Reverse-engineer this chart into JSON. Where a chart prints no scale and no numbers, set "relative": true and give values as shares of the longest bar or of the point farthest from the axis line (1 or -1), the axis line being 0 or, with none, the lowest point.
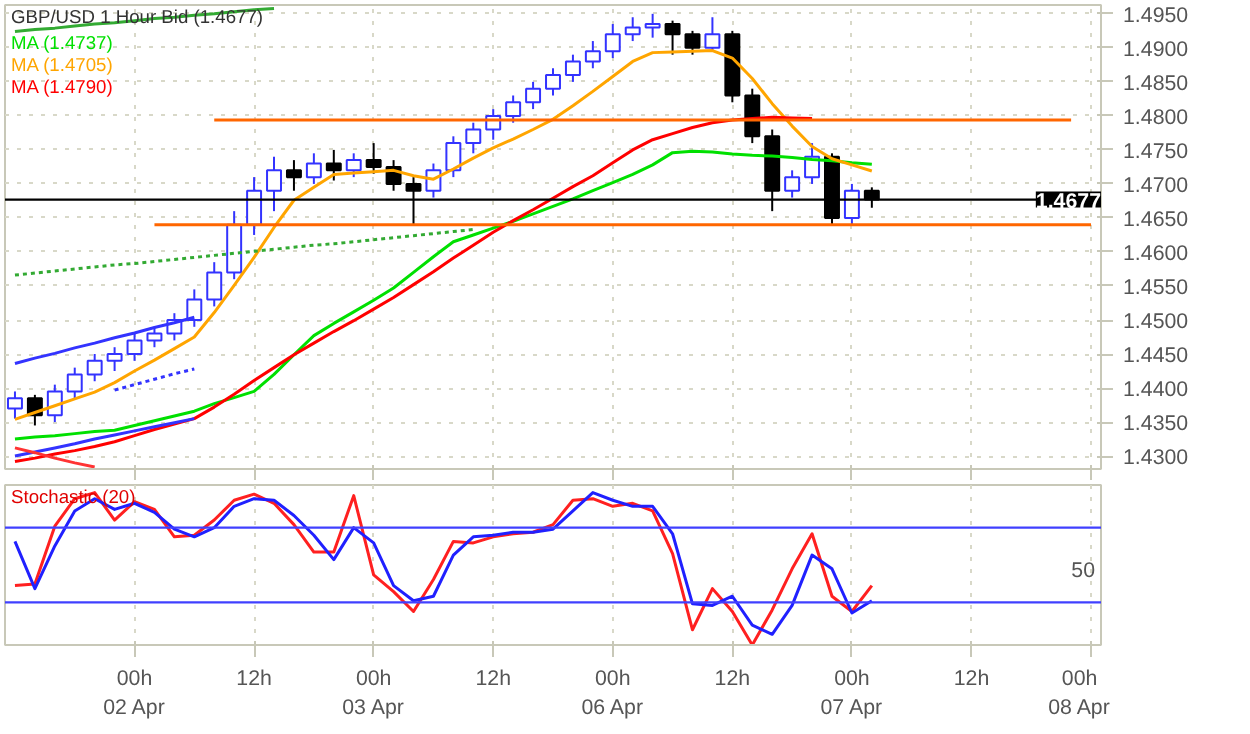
{
  "chart_data": [
    {
      "type": "candlestick",
      "title": "GBP/USD 1 Hour Bid (1.4677)",
      "legend": "top left",
      "grid": true,
      "categories": [
        null,
        null,
        null,
        null,
        null,
        null,
        null,
        null,
        null,
        null,
        null,
        null,
        null,
        null,
        null,
        null,
        null,
        null,
        null,
        null,
        null,
        null,
        null,
        null,
        null,
        null,
        null,
        null,
        null,
        null,
        null,
        null,
        null,
        null,
        null,
        null,
        null,
        null,
        null,
        null,
        null,
        null,
        null,
        null,
        null,
        null,
        null,
        null,
        null,
        null,
        null,
        null,
        null,
        null,
        null
      ],
      "ohlc": [
        [
          1.437,
          1.4395,
          1.4355,
          1.4385
        ],
        [
          1.4385,
          1.439,
          1.4345,
          1.436
        ],
        [
          1.436,
          1.4405,
          1.435,
          1.4395
        ],
        [
          1.4395,
          1.443,
          1.4385,
          1.442
        ],
        [
          1.442,
          1.445,
          1.441,
          1.444
        ],
        [
          1.444,
          1.446,
          1.4425,
          1.445
        ],
        [
          1.445,
          1.448,
          1.444,
          1.447
        ],
        [
          1.447,
          1.449,
          1.446,
          1.448
        ],
        [
          1.448,
          1.451,
          1.447,
          1.45
        ],
        [
          1.45,
          1.4545,
          1.449,
          1.453
        ],
        [
          1.453,
          1.4585,
          1.452,
          1.457
        ],
        [
          1.457,
          1.466,
          1.456,
          1.464
        ],
        [
          1.464,
          1.471,
          1.4625,
          1.469
        ],
        [
          1.469,
          1.474,
          1.466,
          1.472
        ],
        [
          1.472,
          1.4735,
          1.469,
          1.471
        ],
        [
          1.471,
          1.4745,
          1.47,
          1.473
        ],
        [
          1.473,
          1.475,
          1.4705,
          1.472
        ],
        [
          1.472,
          1.4745,
          1.471,
          1.4735
        ],
        [
          1.4735,
          1.476,
          1.4715,
          1.4725
        ],
        [
          1.4725,
          1.4735,
          1.469,
          1.47
        ],
        [
          1.47,
          1.471,
          1.464,
          1.469
        ],
        [
          1.469,
          1.473,
          1.468,
          1.472
        ],
        [
          1.472,
          1.477,
          1.471,
          1.476
        ],
        [
          1.476,
          1.479,
          1.4745,
          1.478
        ],
        [
          1.478,
          1.481,
          1.4765,
          1.48
        ],
        [
          1.48,
          1.483,
          1.479,
          1.482
        ],
        [
          1.482,
          1.485,
          1.481,
          1.484
        ],
        [
          1.484,
          1.487,
          1.483,
          1.486
        ],
        [
          1.486,
          1.489,
          1.485,
          1.488
        ],
        [
          1.488,
          1.491,
          1.487,
          1.4895
        ],
        [
          1.4895,
          1.4935,
          1.4885,
          1.492
        ],
        [
          1.492,
          1.4945,
          1.491,
          1.493
        ],
        [
          1.493,
          1.495,
          1.4915,
          1.4935
        ],
        [
          1.4935,
          1.494,
          1.489,
          1.492
        ],
        [
          1.492,
          1.4925,
          1.489,
          1.49
        ],
        [
          1.49,
          1.4945,
          1.4895,
          1.492
        ],
        [
          1.492,
          1.4925,
          1.482,
          1.483
        ],
        [
          1.483,
          1.484,
          1.476,
          1.477
        ],
        [
          1.477,
          1.478,
          1.466,
          1.469
        ],
        [
          1.469,
          1.472,
          1.468,
          1.471
        ],
        [
          1.471,
          1.476,
          1.47,
          1.474
        ],
        [
          1.474,
          1.4745,
          1.464,
          1.465
        ],
        [
          1.465,
          1.47,
          1.464,
          1.469
        ],
        [
          1.469,
          1.4695,
          1.4665,
          1.4677
        ],
        null,
        null,
        null,
        null,
        null,
        null,
        null,
        null,
        null,
        null,
        null
      ],
      "series": [
        {
          "type": "line",
          "name": "MA (1.4737)",
          "color": "#00e000",
          "values": [
            1.4325,
            1.4328,
            1.433,
            1.4333,
            1.4336,
            1.4338,
            1.4345,
            1.4352,
            1.4359,
            1.4366,
            1.4377,
            1.4386,
            1.4395,
            1.442,
            1.4449,
            1.4477,
            1.4495,
            1.4512,
            1.4529,
            1.4547,
            1.457,
            1.4593,
            1.4615,
            1.4625,
            1.4635,
            1.4645,
            1.4656,
            1.4667,
            1.4678,
            1.469,
            1.4702,
            1.4714,
            1.4728,
            1.4746,
            1.4748,
            1.4747,
            1.4744,
            1.4742,
            1.4741,
            1.4739,
            1.4736,
            1.4734,
            1.4731,
            1.4729,
            null,
            null,
            null,
            null,
            null,
            null,
            null,
            null,
            null,
            null,
            null
          ]
        },
        {
          "type": "line",
          "name": "MA (1.4705)",
          "color": "#ffa500",
          "values": [
            1.4354,
            1.4364,
            1.4374,
            1.4384,
            1.4394,
            1.4408,
            1.4425,
            1.4441,
            1.4458,
            1.4475,
            1.4511,
            1.4551,
            1.4592,
            1.4636,
            1.4676,
            1.4695,
            1.4714,
            1.4716,
            1.4718,
            1.472,
            1.4712,
            1.4707,
            1.4722,
            1.4738,
            1.4753,
            1.4766,
            1.478,
            1.4795,
            1.4815,
            1.4836,
            1.4858,
            1.488,
            1.4893,
            1.4894,
            1.4895,
            1.4896,
            1.4885,
            1.4855,
            1.4818,
            1.4785,
            1.4755,
            1.4737,
            1.4728,
            1.4719,
            null,
            null,
            null,
            null,
            null,
            null,
            null,
            null,
            null,
            null,
            null
          ]
        },
        {
          "type": "line",
          "name": "MA (1.4790)",
          "color": "#ff0000",
          "values": [
            1.4292,
            1.4297,
            1.4303,
            1.4308,
            1.4314,
            1.4321,
            1.433,
            1.4339,
            1.4347,
            1.4355,
            1.4372,
            1.4391,
            1.4411,
            1.443,
            1.4449,
            1.4466,
            1.4483,
            1.4499,
            1.4516,
            1.4533,
            1.4552,
            1.4571,
            1.4591,
            1.461,
            1.4629,
            1.4646,
            1.4662,
            1.4679,
            1.4696,
            1.4712,
            1.4731,
            1.475,
            1.4765,
            1.4774,
            1.4783,
            1.479,
            1.4794,
            1.4796,
            1.4798,
            1.4797,
            1.4796,
            null,
            null,
            null,
            null,
            null,
            null,
            null,
            null,
            null,
            null,
            null,
            null,
            null,
            null
          ]
        },
        {
          "type": "line",
          "color": "#ff6600",
          "values": [
            null,
            null,
            null,
            null,
            null,
            null,
            null,
            null,
            null,
            null,
            1.4794,
            1.4794,
            1.4794,
            1.4794,
            1.4794,
            1.4794,
            1.4794,
            1.4794,
            1.4794,
            1.4794,
            1.4794,
            1.4794,
            1.4794,
            1.4794,
            1.4794,
            1.4794,
            1.4794,
            1.4794,
            1.4794,
            1.4794,
            1.4794,
            1.4794,
            1.4794,
            1.4794,
            1.4794,
            1.4794,
            1.4794,
            1.4794,
            1.4794,
            1.4794,
            1.4794,
            1.4794,
            1.4794,
            1.4794,
            1.4794,
            1.4794,
            1.4794,
            1.4794,
            1.4794,
            1.4794,
            1.4794,
            1.4794,
            1.4794,
            1.4794,
            null
          ]
        },
        {
          "type": "line",
          "color": "#ff6600",
          "values": [
            null,
            null,
            null,
            null,
            null,
            null,
            null,
            1.464,
            1.464,
            1.464,
            1.464,
            1.464,
            1.464,
            1.464,
            1.464,
            1.464,
            1.464,
            1.464,
            1.464,
            1.464,
            1.464,
            1.464,
            1.464,
            1.464,
            1.464,
            1.464,
            1.464,
            1.464,
            1.464,
            1.464,
            1.464,
            1.464,
            1.464,
            1.464,
            1.464,
            1.464,
            1.464,
            1.464,
            1.464,
            1.464,
            1.464,
            1.464,
            1.464,
            1.464,
            1.464,
            1.464,
            1.464,
            1.464,
            1.464,
            1.464,
            1.464,
            1.464,
            1.464,
            1.464,
            1.464
          ]
        },
        {
          "type": "line",
          "color": "#3333ff",
          "values": [
            1.4436,
            1.4444,
            1.4451,
            1.4459,
            1.4466,
            1.4474,
            1.4481,
            1.4489,
            1.4496,
            1.4504,
            null,
            null,
            null,
            null,
            null,
            null,
            null,
            null,
            null,
            null,
            null,
            null,
            null,
            null,
            null,
            null,
            null,
            null,
            null,
            null,
            null,
            null,
            null,
            null,
            null,
            null,
            null,
            null,
            null,
            null,
            null,
            null,
            null,
            null,
            null,
            null,
            null,
            null,
            null,
            null,
            null,
            null,
            null,
            null,
            null
          ]
        },
        {
          "type": "line",
          "color": "#3333ff",
          "values": [
            1.43,
            1.4306,
            1.4312,
            1.4318,
            1.4325,
            1.4331,
            1.4337,
            1.4343,
            1.4349,
            1.4355,
            null,
            null,
            null,
            null,
            null,
            null,
            null,
            null,
            null,
            null,
            null,
            null,
            null,
            null,
            null,
            null,
            null,
            null,
            null,
            null,
            null,
            null,
            null,
            null,
            null,
            null,
            null,
            null,
            null,
            null,
            null,
            null,
            null,
            null,
            null,
            null,
            null,
            null,
            null,
            null,
            null,
            null,
            null,
            null,
            null
          ]
        },
        {
          "type": "line",
          "color": "#3333ff",
          "line_style": "dotted",
          "values": [
            null,
            null,
            null,
            null,
            null,
            1.4397,
            1.4405,
            1.4413,
            1.4421,
            1.4428,
            null,
            null,
            null,
            null,
            null,
            null,
            null,
            null,
            null,
            null,
            null,
            null,
            null,
            null,
            null,
            null,
            null,
            null,
            null,
            null,
            null,
            null,
            null,
            null,
            null,
            null,
            null,
            null,
            null,
            null,
            null,
            null,
            null,
            null,
            null,
            null,
            null,
            null,
            null,
            null,
            null,
            null,
            null,
            null,
            null
          ]
        },
        {
          "type": "line",
          "color": "#33aa33",
          "line_style": "dotted",
          "values": [
            1.4566,
            1.4569,
            1.4572,
            1.4575,
            1.4578,
            1.4581,
            1.4583,
            1.4586,
            1.4589,
            1.4592,
            1.4595,
            1.4598,
            1.4601,
            1.4604,
            1.4607,
            1.461,
            1.4612,
            1.4615,
            1.4618,
            1.4621,
            1.4624,
            1.4627,
            1.463,
            1.4633,
            null,
            null,
            null,
            null,
            null,
            null,
            null,
            null,
            null,
            null,
            null,
            null,
            null,
            null,
            null,
            null,
            null,
            null,
            null,
            null,
            null,
            null,
            null,
            null,
            null,
            null,
            null,
            null,
            null,
            null,
            null
          ]
        },
        {
          "type": "line",
          "color": "#ff3333",
          "values": [
            1.4312,
            1.4305,
            1.4297,
            1.429,
            1.4284,
            null,
            null,
            null,
            null,
            null,
            null,
            null,
            null,
            null,
            null,
            null,
            null,
            null,
            null,
            null,
            null,
            null,
            null,
            null,
            null,
            null,
            null,
            null,
            null,
            null,
            null,
            null,
            null,
            null,
            null,
            null,
            null,
            null,
            null,
            null,
            null,
            null,
            null,
            null,
            null,
            null,
            null,
            null,
            null,
            null,
            null,
            null,
            null,
            null,
            null
          ]
        },
        {
          "type": "line",
          "color": "#33aa33",
          "values": [
            1.4924,
            1.4927,
            1.4929,
            1.4932,
            1.4935,
            1.4937,
            1.494,
            1.4943,
            1.4945,
            1.4948,
            1.495,
            1.4953,
            1.4956,
            1.4958,
            null,
            null,
            null,
            null,
            null,
            null,
            null,
            null,
            null,
            null,
            null,
            null,
            null,
            null,
            null,
            null,
            null,
            null,
            null,
            null,
            null,
            null,
            null,
            null,
            null,
            null,
            null,
            null,
            null,
            null,
            null,
            null,
            null,
            null,
            null,
            null,
            null,
            null,
            null,
            null,
            null
          ]
        }
      ],
      "ref_lines": [
        {
          "axis": "y",
          "value": 1.4677,
          "label": "1.4677",
          "color": "#000000"
        }
      ],
      "ylim": [
        1.4281,
        1.4963
      ],
      "yticks": [
        {
          "value": 1.43,
          "label": "1.4300"
        },
        {
          "value": 1.435,
          "label": "1.4350"
        },
        {
          "value": 1.44,
          "label": "1.4400"
        },
        {
          "value": 1.445,
          "label": "1.4450"
        },
        {
          "value": 1.45,
          "label": "1.4500"
        },
        {
          "value": 1.455,
          "label": "1.4550"
        },
        {
          "value": 1.46,
          "label": "1.4600"
        },
        {
          "value": 1.465,
          "label": "1.4650"
        },
        {
          "value": 1.47,
          "label": "1.4700"
        },
        {
          "value": 1.475,
          "label": "1.4750"
        },
        {
          "value": 1.48,
          "label": "1.4800"
        },
        {
          "value": 1.485,
          "label": "1.4850"
        },
        {
          "value": 1.49,
          "label": "1.4900"
        },
        {
          "value": 1.495,
          "label": "1.4950"
        }
      ]
    },
    {
      "type": "line",
      "title": "Stochastic (20)",
      "grid": true,
      "relative": true,
      "categories": [
        null,
        null,
        null,
        null,
        null,
        null,
        "00h\n02 Apr",
        null,
        null,
        null,
        null,
        null,
        "12h",
        null,
        null,
        null,
        null,
        null,
        "00h\n03 Apr",
        null,
        null,
        null,
        null,
        null,
        "12h",
        null,
        null,
        null,
        null,
        null,
        "00h\n06 Apr",
        null,
        null,
        null,
        null,
        null,
        "12h",
        null,
        null,
        null,
        null,
        null,
        "00h\n07 Apr",
        null,
        null,
        null,
        null,
        null,
        "12h",
        null,
        null,
        null,
        null,
        null,
        "00h\n08 Apr"
      ],
      "series": [
        {
          "color": "#ff2020",
          "values": [
            0.39,
            0.4,
            0.78,
            0.96,
            1.0,
            0.82,
            0.94,
            0.89,
            0.71,
            0.72,
            0.82,
            0.95,
            0.99,
            0.93,
            0.79,
            0.61,
            0.61,
            0.98,
            0.46,
            0.35,
            0.22,
            0.43,
            0.68,
            0.67,
            0.71,
            0.73,
            0.74,
            0.79,
            0.95,
            0.96,
            0.91,
            0.93,
            0.88,
            0.6,
            0.1,
            0.37,
            0.22,
            0.0,
            0.23,
            0.5,
            0.73,
            0.32,
            0.22,
            0.39,
            null,
            null,
            null,
            null,
            null,
            null,
            null,
            null,
            null,
            null,
            null
          ]
        },
        {
          "color": "#2020ff",
          "values": [
            0.68,
            0.37,
            0.65,
            0.88,
            0.96,
            0.89,
            0.93,
            0.87,
            0.76,
            0.71,
            0.77,
            0.91,
            0.96,
            0.95,
            0.85,
            0.72,
            0.56,
            0.77,
            0.67,
            0.39,
            0.29,
            0.32,
            0.59,
            0.71,
            0.72,
            0.74,
            0.74,
            0.76,
            0.88,
            1.0,
            0.95,
            0.91,
            0.91,
            0.73,
            0.27,
            0.26,
            0.32,
            0.13,
            0.07,
            0.26,
            0.59,
            0.5,
            0.21,
            0.29,
            null,
            null,
            null,
            null,
            null,
            null,
            null,
            null,
            null,
            null,
            null
          ]
        }
      ],
      "ref_lines": [
        {
          "axis": "y",
          "value": 0.77,
          "color": "#4040ff"
        },
        {
          "axis": "y",
          "value": 0.28,
          "color": "#4040ff"
        }
      ],
      "annotations": [
        "50"
      ]
    }
  ]
}
